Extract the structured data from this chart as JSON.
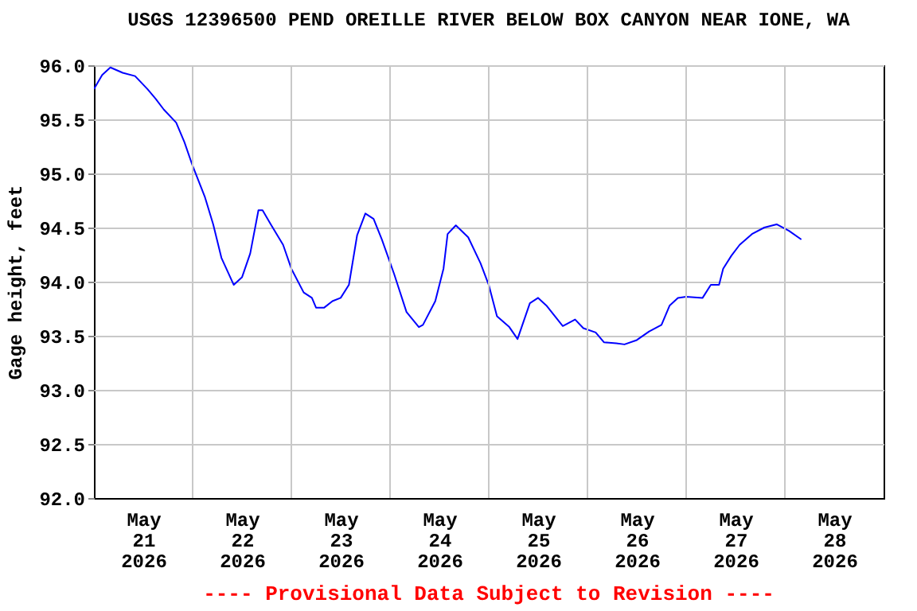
{
  "chart_data": {
    "type": "line",
    "title": "USGS 12396500 PEND OREILLE RIVER BELOW BOX CANYON NEAR IONE, WA",
    "ylabel": "Gage height, feet",
    "annotations": [
      "---- Provisional Data Subject to Revision ----"
    ],
    "x": [
      "2026-05-21T00:00",
      "2026-05-21T02:00",
      "2026-05-21T04:00",
      "2026-05-21T07:00",
      "2026-05-21T10:00",
      "2026-05-21T13:00",
      "2026-05-21T15:00",
      "2026-05-21T17:00",
      "2026-05-21T20:00",
      "2026-05-21T22:00",
      "2026-05-22T00:00",
      "2026-05-22T03:00",
      "2026-05-22T05:00",
      "2026-05-22T07:00",
      "2026-05-22T10:00",
      "2026-05-22T12:00",
      "2026-05-22T14:00",
      "2026-05-22T16:00",
      "2026-05-22T17:00",
      "2026-05-22T19:00",
      "2026-05-22T22:00",
      "2026-05-23T00:00",
      "2026-05-23T03:00",
      "2026-05-23T05:00",
      "2026-05-23T06:00",
      "2026-05-23T08:00",
      "2026-05-23T10:00",
      "2026-05-23T12:00",
      "2026-05-23T14:00",
      "2026-05-23T16:00",
      "2026-05-23T18:00",
      "2026-05-23T20:00",
      "2026-05-23T22:00",
      "2026-05-24T01:00",
      "2026-05-24T04:00",
      "2026-05-24T07:00",
      "2026-05-24T08:00",
      "2026-05-24T11:00",
      "2026-05-24T13:00",
      "2026-05-24T14:00",
      "2026-05-24T16:00",
      "2026-05-24T19:00",
      "2026-05-24T22:00",
      "2026-05-25T00:00",
      "2026-05-25T02:00",
      "2026-05-25T05:00",
      "2026-05-25T07:00",
      "2026-05-25T08:00",
      "2026-05-25T10:00",
      "2026-05-25T12:00",
      "2026-05-25T14:00",
      "2026-05-25T18:00",
      "2026-05-25T21:00",
      "2026-05-25T23:00",
      "2026-05-26T02:00",
      "2026-05-26T04:00",
      "2026-05-26T07:00",
      "2026-05-26T09:00",
      "2026-05-26T12:00",
      "2026-05-26T15:00",
      "2026-05-26T18:00",
      "2026-05-26T20:00",
      "2026-05-26T22:00",
      "2026-05-27T00:00",
      "2026-05-27T04:00",
      "2026-05-27T06:00",
      "2026-05-27T08:00",
      "2026-05-27T09:00",
      "2026-05-27T11:00",
      "2026-05-27T13:00",
      "2026-05-27T16:00",
      "2026-05-27T19:00",
      "2026-05-27T22:00",
      "2026-05-28T01:00",
      "2026-05-28T04:00"
    ],
    "series": [
      {
        "color": "#0000ff",
        "values": [
          95.78,
          95.91,
          95.98,
          95.93,
          95.9,
          95.78,
          95.69,
          95.59,
          95.47,
          95.29,
          95.07,
          94.78,
          94.53,
          94.22,
          93.97,
          94.04,
          94.26,
          94.66,
          94.66,
          94.53,
          94.34,
          94.12,
          93.9,
          93.85,
          93.76,
          93.76,
          93.82,
          93.85,
          93.97,
          94.43,
          94.63,
          94.58,
          94.39,
          94.07,
          93.72,
          93.58,
          93.6,
          93.82,
          94.12,
          94.44,
          94.52,
          94.41,
          94.17,
          93.97,
          93.68,
          93.58,
          93.47,
          93.58,
          93.8,
          93.85,
          93.78,
          93.59,
          93.65,
          93.57,
          93.53,
          93.44,
          93.43,
          93.42,
          93.46,
          93.54,
          93.6,
          93.78,
          93.85,
          93.86,
          93.85,
          93.97,
          93.97,
          94.12,
          94.24,
          94.34,
          94.44,
          94.5,
          94.53,
          94.47,
          94.39
        ]
      }
    ],
    "xlim": [
      "2026-05-21T00:00",
      "2026-05-29T00:00"
    ],
    "xticks": [
      {
        "value": "2026-05-21T12:00",
        "label": "May\n21\n2026"
      },
      {
        "value": "2026-05-22T00:00",
        "label": null
      },
      {
        "value": "2026-05-22T12:00",
        "label": "May\n22\n2026"
      },
      {
        "value": "2026-05-23T00:00",
        "label": null
      },
      {
        "value": "2026-05-23T12:00",
        "label": "May\n23\n2026"
      },
      {
        "value": "2026-05-24T00:00",
        "label": null
      },
      {
        "value": "2026-05-24T12:00",
        "label": "May\n24\n2026"
      },
      {
        "value": "2026-05-25T00:00",
        "label": null
      },
      {
        "value": "2026-05-25T12:00",
        "label": "May\n25\n2026"
      },
      {
        "value": "2026-05-26T00:00",
        "label": null
      },
      {
        "value": "2026-05-26T12:00",
        "label": "May\n26\n2026"
      },
      {
        "value": "2026-05-27T00:00",
        "label": null
      },
      {
        "value": "2026-05-27T12:00",
        "label": "May\n27\n2026"
      },
      {
        "value": "2026-05-28T00:00",
        "label": null
      },
      {
        "value": "2026-05-28T12:00",
        "label": "May\n28\n2026"
      }
    ],
    "ylim": [
      92,
      96
    ],
    "yticks": [
      {
        "value": 92,
        "label": "92.0"
      },
      {
        "value": 92.5,
        "label": "92.5"
      },
      {
        "value": 93,
        "label": "93.0"
      },
      {
        "value": 93.5,
        "label": "93.5"
      },
      {
        "value": 94,
        "label": "94.0"
      },
      {
        "value": 94.5,
        "label": "94.5"
      },
      {
        "value": 95,
        "label": "95.0"
      },
      {
        "value": 95.5,
        "label": "95.5"
      },
      {
        "value": 96,
        "label": "96.0"
      }
    ],
    "grid": true,
    "marker": "none",
    "line_style": "solid"
  }
}
